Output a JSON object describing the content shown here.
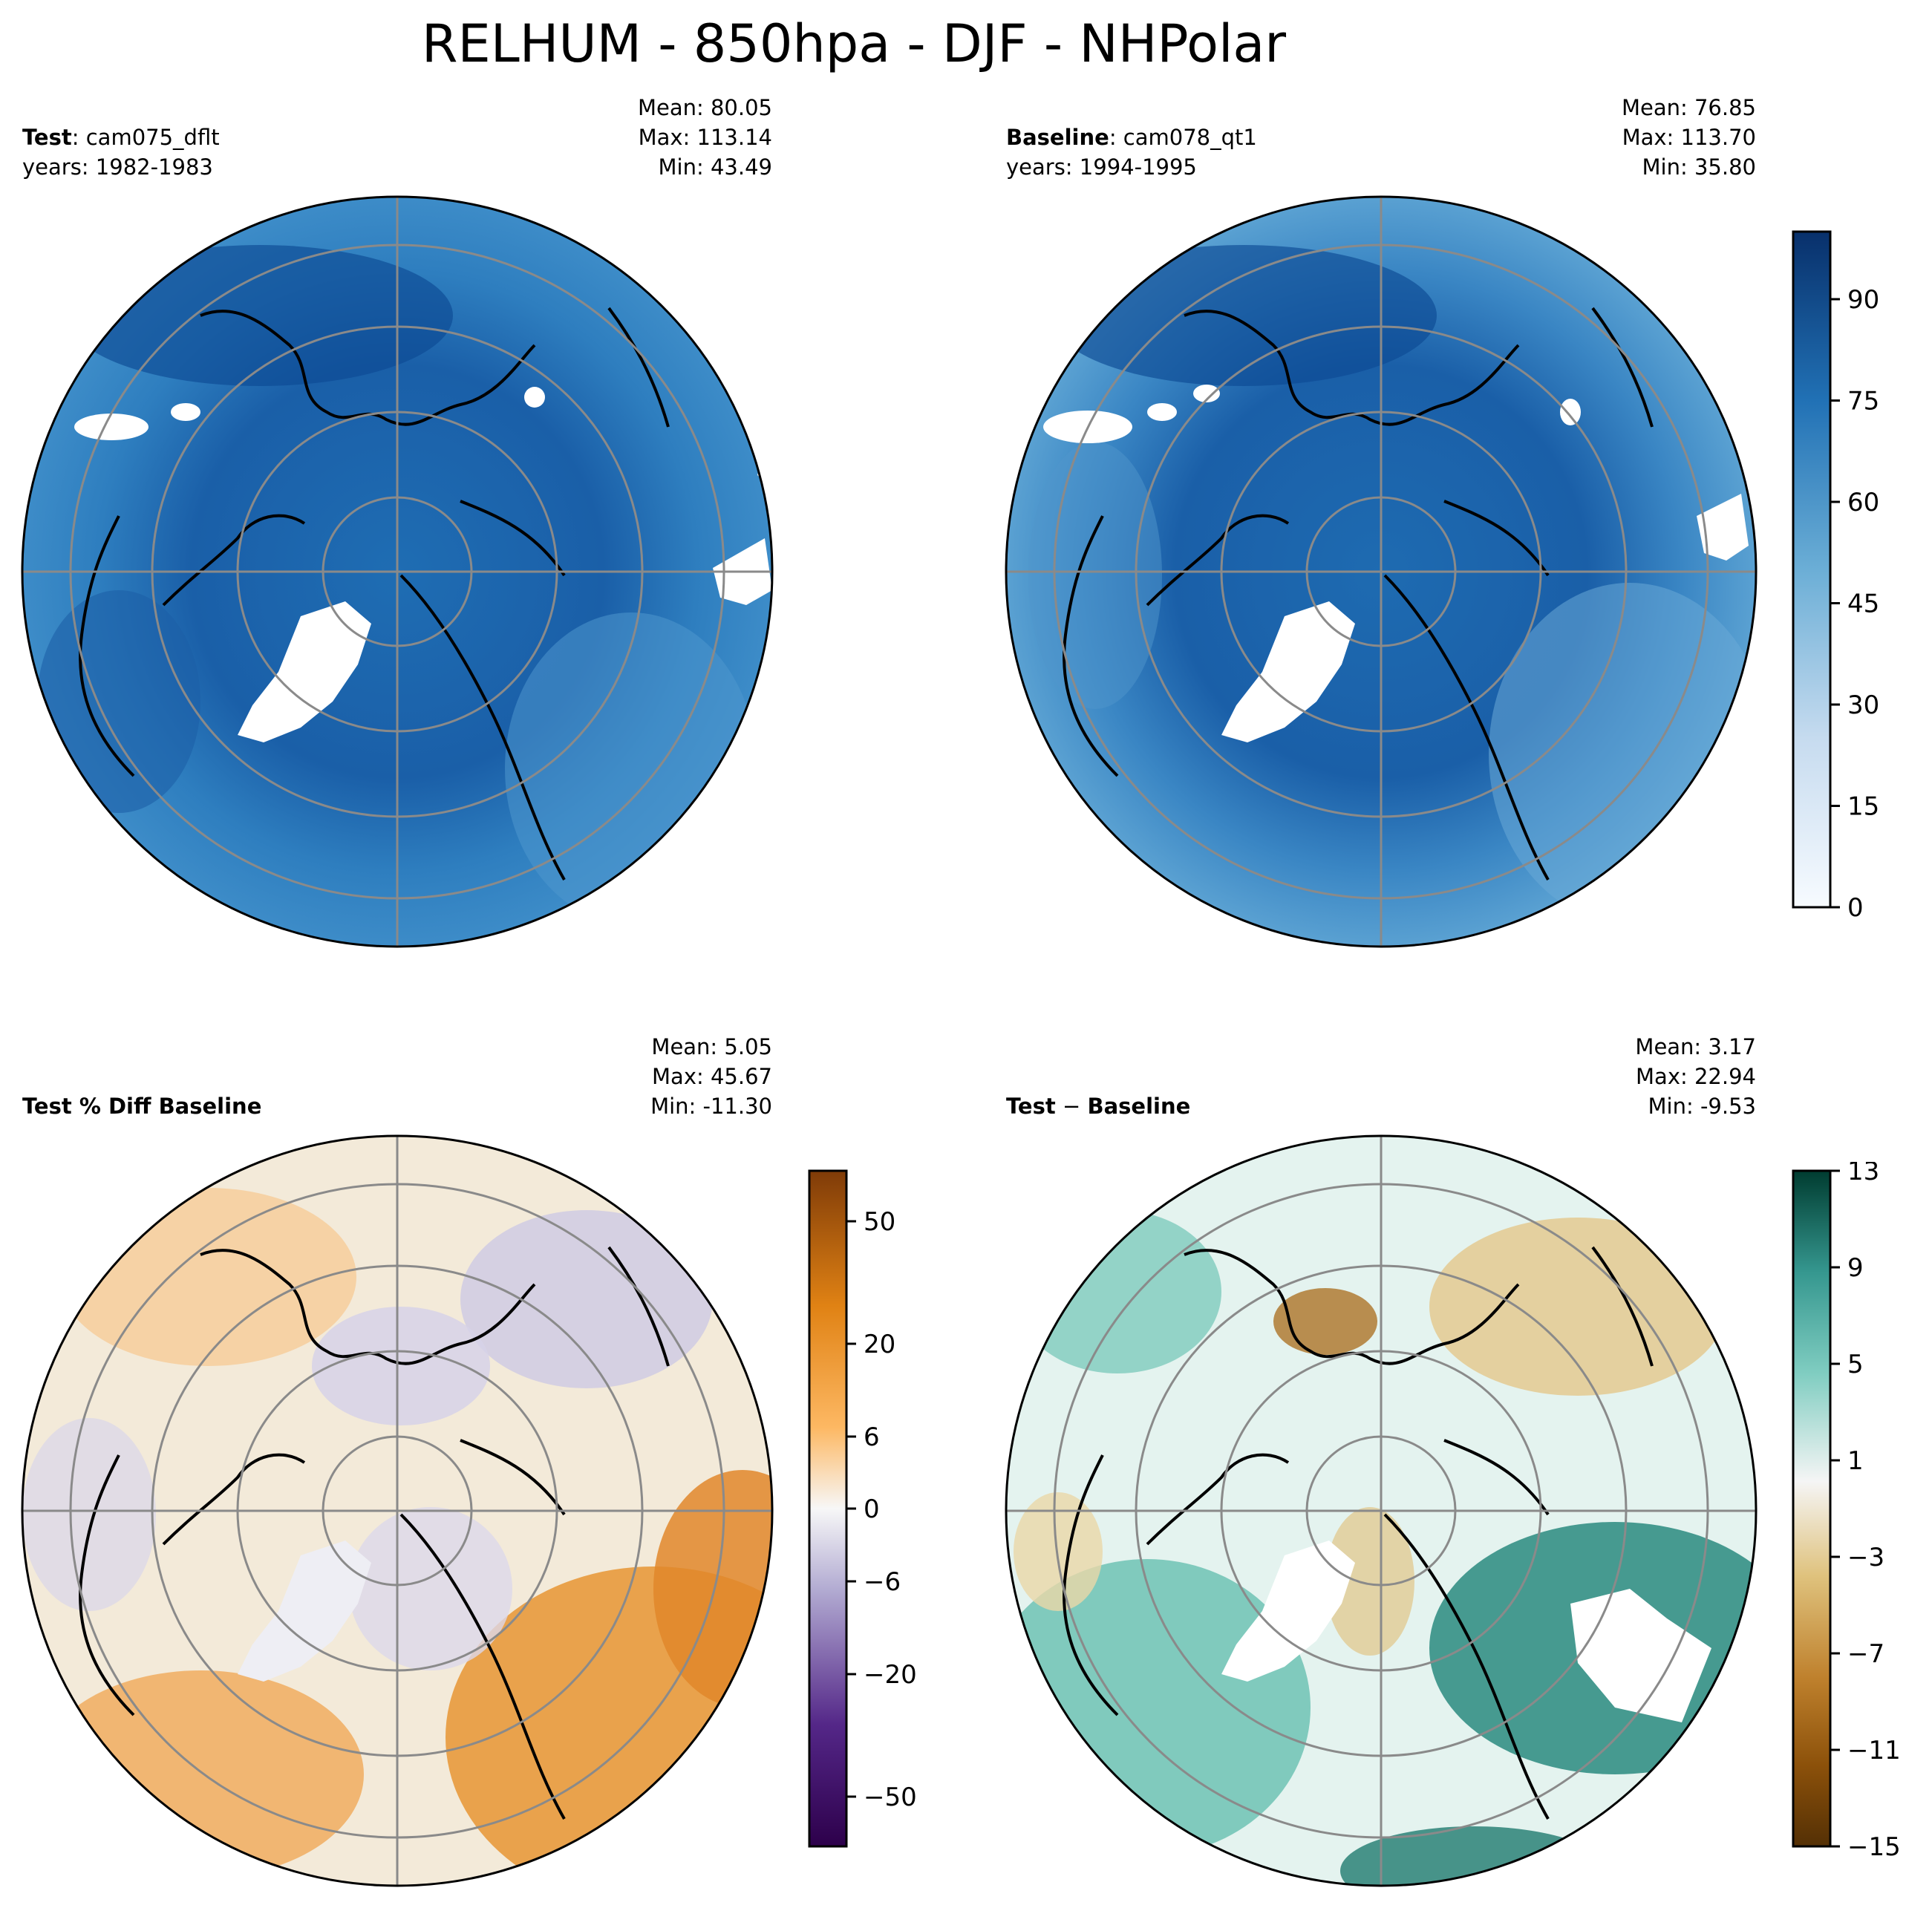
{
  "title": "RELHUM - 850hpa - DJF - NHPolar",
  "panels": {
    "test": {
      "label_bold": "Test",
      "label_rest": ": cam075_dflt",
      "years": "years: 1982-1983",
      "mean": "Mean: 80.05",
      "max": "Max: 113.14",
      "min": "Min: 43.49"
    },
    "baseline": {
      "label_bold": "Baseline",
      "label_rest": ": cam078_qt1",
      "years": "years: 1994-1995",
      "mean": "Mean: 76.85",
      "max": "Max: 113.70",
      "min": "Min: 35.80"
    },
    "pctdiff": {
      "label": "Test % Diff Baseline",
      "mean": "Mean:  5.05",
      "max": "Max: 45.67",
      "min": "Min: -11.30"
    },
    "diff": {
      "label_bold": "Test",
      "label_sep": " − ",
      "label_bold2": "Baseline",
      "mean": "Mean:  3.17",
      "max": "Max: 22.94",
      "min": "Min: -9.53"
    }
  },
  "colorbars": {
    "main": {
      "ticks": [
        "90",
        "75",
        "60",
        "45",
        "30",
        "15",
        "0"
      ],
      "colors": [
        "#08306b",
        "#2171b5",
        "#6baed6",
        "#c6dbef",
        "#f7fbff"
      ]
    },
    "pct": {
      "ticks": [
        "50",
        "20",
        "6",
        "0",
        "−6",
        "−20",
        "−50"
      ],
      "colors": [
        "#7f3b08",
        "#e08214",
        "#fdb863",
        "#f7f7f7",
        "#b2abd2",
        "#542788",
        "#2d004b"
      ]
    },
    "diff": {
      "ticks": [
        "13",
        "9",
        "5",
        "1",
        "−3",
        "−7",
        "−11",
        "−15"
      ],
      "colors": [
        "#003c30",
        "#35978f",
        "#80cdc1",
        "#f5f5f5",
        "#dfc27d",
        "#bf812d",
        "#8c510a",
        "#543005"
      ]
    }
  },
  "chart_data": [
    {
      "type": "heatmap",
      "title": "Test : cam075_dflt",
      "subtitle": "years: 1982-1983",
      "stats": {
        "mean": 80.05,
        "max": 113.14,
        "min": 43.49
      },
      "colorbar_range": [
        0,
        100
      ],
      "colorbar_ticks": [
        0,
        15,
        30,
        45,
        60,
        75,
        90
      ]
    },
    {
      "type": "heatmap",
      "title": "Baseline : cam078_qt1",
      "subtitle": "years: 1994-1995",
      "stats": {
        "mean": 76.85,
        "max": 113.7,
        "min": 35.8
      },
      "colorbar_range": [
        0,
        100
      ],
      "colorbar_ticks": [
        0,
        15,
        30,
        45,
        60,
        75,
        90
      ]
    },
    {
      "type": "heatmap",
      "title": "Test % Diff Baseline",
      "stats": {
        "mean": 5.05,
        "max": 45.67,
        "min": -11.3
      },
      "colorbar_ticks": [
        -50,
        -20,
        -6,
        0,
        6,
        20,
        50
      ]
    },
    {
      "type": "heatmap",
      "title": "Test − Baseline",
      "stats": {
        "mean": 3.17,
        "max": 22.94,
        "min": -9.53
      },
      "colorbar_range": [
        -15,
        13
      ],
      "colorbar_ticks": [
        -15,
        -11,
        -7,
        -3,
        1,
        5,
        9,
        13
      ]
    }
  ]
}
